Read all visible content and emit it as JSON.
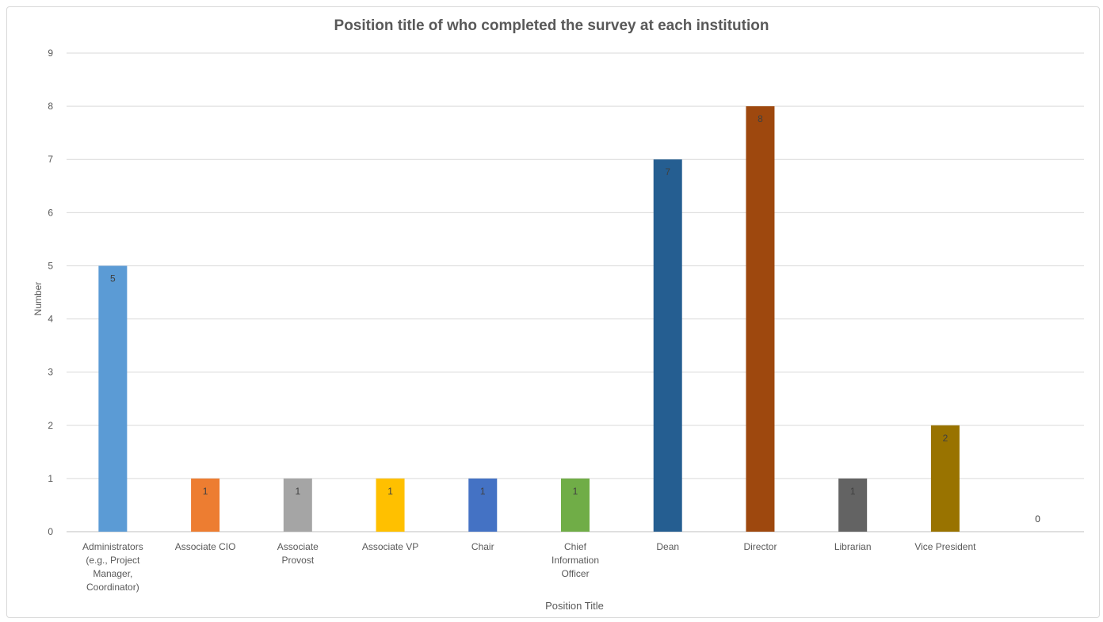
{
  "chart_data": {
    "type": "bar",
    "title": "Position title of who completed the survey at each institution",
    "xlabel": "Position Title",
    "ylabel": "Number",
    "ylim": [
      0,
      9
    ],
    "yticks": [
      0,
      1,
      2,
      3,
      4,
      5,
      6,
      7,
      8,
      9
    ],
    "grid": true,
    "legend": "none",
    "categories": [
      [
        "Administrators",
        "(e.g., Project",
        "Manager,",
        "Coordinator)"
      ],
      [
        "Associate CIO"
      ],
      [
        "Associate",
        "Provost"
      ],
      [
        "Associate VP"
      ],
      [
        "Chair"
      ],
      [
        "Chief",
        "Information",
        "Officer"
      ],
      [
        "Dean"
      ],
      [
        "Director"
      ],
      [
        "Librarian"
      ],
      [
        "Vice President"
      ],
      [
        ""
      ]
    ],
    "values": [
      5,
      1,
      1,
      1,
      1,
      1,
      7,
      8,
      1,
      2,
      0
    ],
    "colors": [
      "#5b9bd5",
      "#ed7d31",
      "#a5a5a5",
      "#ffc000",
      "#4472c4",
      "#70ad47",
      "#255e91",
      "#9e480e",
      "#636363",
      "#997300",
      "#264478"
    ]
  }
}
